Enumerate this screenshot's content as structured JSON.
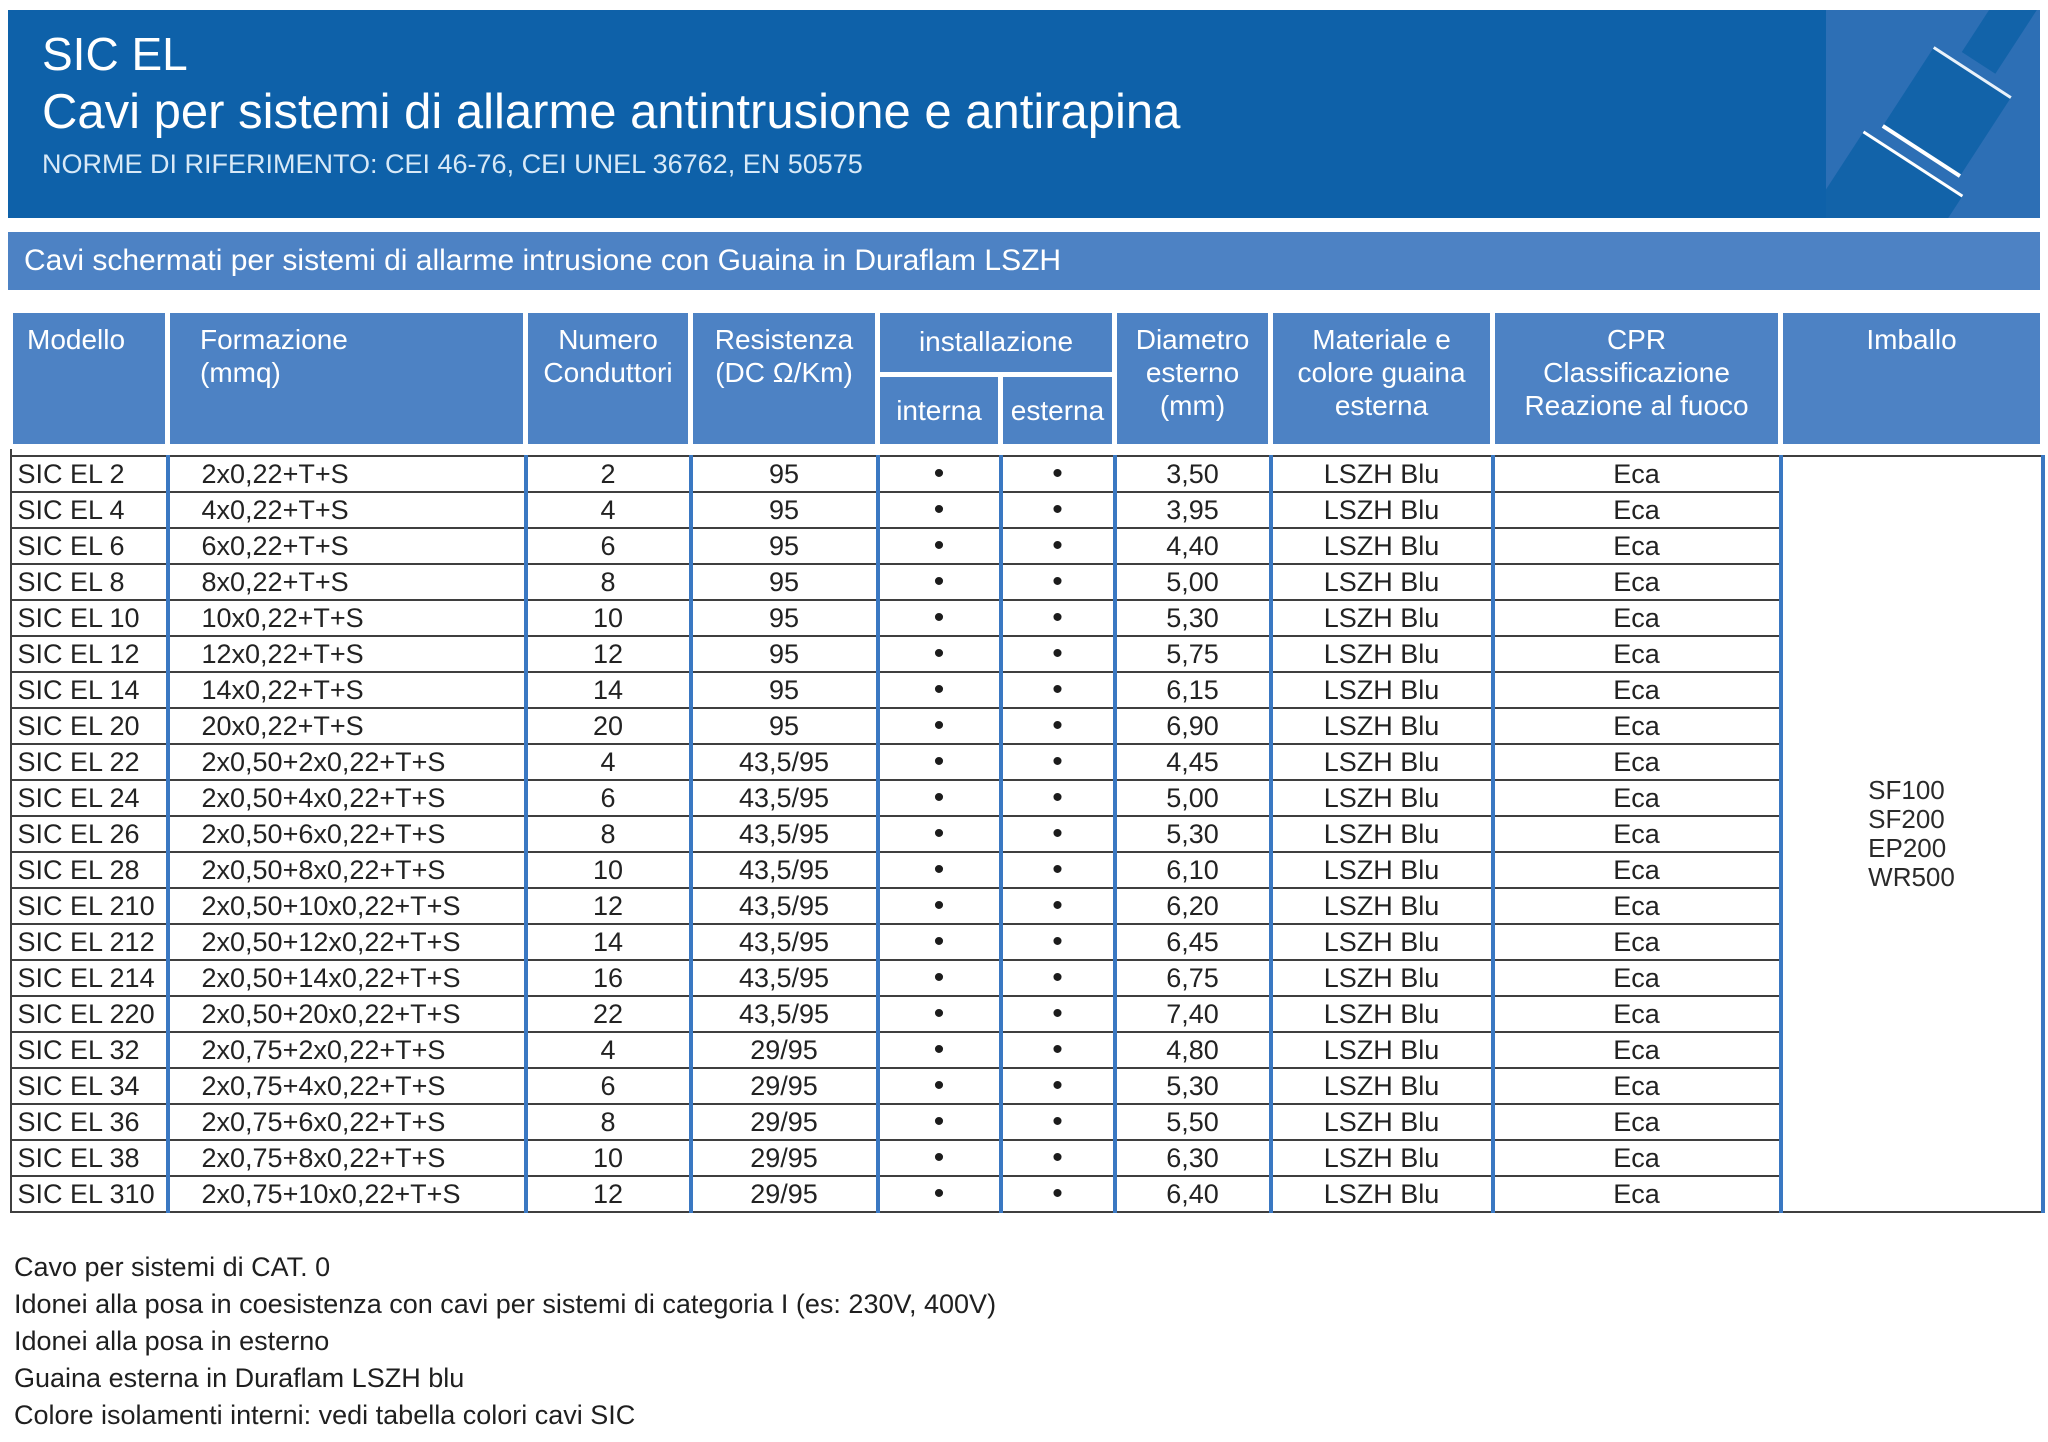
{
  "header": {
    "product": "SIC EL",
    "title": "Cavi per sistemi di allarme antintrusione e antirapina",
    "norms": "NORME DI RIFERIMENTO: CEI 46-76, CEI UNEL 36762, EN 50575"
  },
  "banner": {
    "label": "Cavi schermati per sistemi di allarme intrusione con Guaina in Duraflam LSZH"
  },
  "table": {
    "headers": {
      "modello": "Modello",
      "formazione": "Formazione\n(mmq)",
      "numero": "Numero\nConduttori",
      "resistenza": "Resistenza\n(DC Ω/Km)",
      "installazione": "installazione",
      "interna": "interna",
      "esterna": "esterna",
      "diametro": "Diametro\nesterno\n(mm)",
      "materiale": "Materiale e\ncolore guaina\nesterna",
      "cpr": "CPR\nClassificazione\nReazione al fuoco",
      "imballo": "Imballo"
    },
    "dot": "•",
    "imballo_options": [
      "SF100",
      "SF200",
      "EP200",
      "WR500"
    ],
    "rows": [
      {
        "model": "SIC EL 2",
        "formation": "2x0,22+T+S",
        "conductors": "2",
        "resistance": "95",
        "interna": true,
        "esterna": true,
        "diameter": "3,50",
        "sheath": "LSZH Blu",
        "cpr": "Eca"
      },
      {
        "model": "SIC EL 4",
        "formation": "4x0,22+T+S",
        "conductors": "4",
        "resistance": "95",
        "interna": true,
        "esterna": true,
        "diameter": "3,95",
        "sheath": "LSZH Blu",
        "cpr": "Eca"
      },
      {
        "model": "SIC EL 6",
        "formation": "6x0,22+T+S",
        "conductors": "6",
        "resistance": "95",
        "interna": true,
        "esterna": true,
        "diameter": "4,40",
        "sheath": "LSZH Blu",
        "cpr": "Eca"
      },
      {
        "model": "SIC EL 8",
        "formation": "8x0,22+T+S",
        "conductors": "8",
        "resistance": "95",
        "interna": true,
        "esterna": true,
        "diameter": "5,00",
        "sheath": "LSZH Blu",
        "cpr": "Eca"
      },
      {
        "model": "SIC EL 10",
        "formation": "10x0,22+T+S",
        "conductors": "10",
        "resistance": "95",
        "interna": true,
        "esterna": true,
        "diameter": "5,30",
        "sheath": "LSZH Blu",
        "cpr": "Eca"
      },
      {
        "model": "SIC EL 12",
        "formation": "12x0,22+T+S",
        "conductors": "12",
        "resistance": "95",
        "interna": true,
        "esterna": true,
        "diameter": "5,75",
        "sheath": "LSZH Blu",
        "cpr": "Eca"
      },
      {
        "model": "SIC EL 14",
        "formation": "14x0,22+T+S",
        "conductors": "14",
        "resistance": "95",
        "interna": true,
        "esterna": true,
        "diameter": "6,15",
        "sheath": "LSZH Blu",
        "cpr": "Eca"
      },
      {
        "model": "SIC EL 20",
        "formation": "20x0,22+T+S",
        "conductors": "20",
        "resistance": "95",
        "interna": true,
        "esterna": true,
        "diameter": "6,90",
        "sheath": "LSZH Blu",
        "cpr": "Eca"
      },
      {
        "model": "SIC EL 22",
        "formation": "2x0,50+2x0,22+T+S",
        "conductors": "4",
        "resistance": "43,5/95",
        "interna": true,
        "esterna": true,
        "diameter": "4,45",
        "sheath": "LSZH Blu",
        "cpr": "Eca"
      },
      {
        "model": "SIC EL 24",
        "formation": "2x0,50+4x0,22+T+S",
        "conductors": "6",
        "resistance": "43,5/95",
        "interna": true,
        "esterna": true,
        "diameter": "5,00",
        "sheath": "LSZH Blu",
        "cpr": "Eca"
      },
      {
        "model": "SIC EL 26",
        "formation": "2x0,50+6x0,22+T+S",
        "conductors": "8",
        "resistance": "43,5/95",
        "interna": true,
        "esterna": true,
        "diameter": "5,30",
        "sheath": "LSZH Blu",
        "cpr": "Eca"
      },
      {
        "model": "SIC EL 28",
        "formation": "2x0,50+8x0,22+T+S",
        "conductors": "10",
        "resistance": "43,5/95",
        "interna": true,
        "esterna": true,
        "diameter": "6,10",
        "sheath": "LSZH Blu",
        "cpr": "Eca"
      },
      {
        "model": "SIC EL 210",
        "formation": "2x0,50+10x0,22+T+S",
        "conductors": "12",
        "resistance": "43,5/95",
        "interna": true,
        "esterna": true,
        "diameter": "6,20",
        "sheath": "LSZH Blu",
        "cpr": "Eca"
      },
      {
        "model": "SIC EL 212",
        "formation": "2x0,50+12x0,22+T+S",
        "conductors": "14",
        "resistance": "43,5/95",
        "interna": true,
        "esterna": true,
        "diameter": "6,45",
        "sheath": "LSZH Blu",
        "cpr": "Eca"
      },
      {
        "model": "SIC EL 214",
        "formation": "2x0,50+14x0,22+T+S",
        "conductors": "16",
        "resistance": "43,5/95",
        "interna": true,
        "esterna": true,
        "diameter": "6,75",
        "sheath": "LSZH Blu",
        "cpr": "Eca"
      },
      {
        "model": "SIC EL 220",
        "formation": "2x0,50+20x0,22+T+S",
        "conductors": "22",
        "resistance": "43,5/95",
        "interna": true,
        "esterna": true,
        "diameter": "7,40",
        "sheath": "LSZH Blu",
        "cpr": "Eca"
      },
      {
        "model": "SIC EL 32",
        "formation": "2x0,75+2x0,22+T+S",
        "conductors": "4",
        "resistance": "29/95",
        "interna": true,
        "esterna": true,
        "diameter": "4,80",
        "sheath": "LSZH Blu",
        "cpr": "Eca"
      },
      {
        "model": "SIC EL 34",
        "formation": "2x0,75+4x0,22+T+S",
        "conductors": "6",
        "resistance": "29/95",
        "interna": true,
        "esterna": true,
        "diameter": "5,30",
        "sheath": "LSZH Blu",
        "cpr": "Eca"
      },
      {
        "model": "SIC EL 36",
        "formation": "2x0,75+6x0,22+T+S",
        "conductors": "8",
        "resistance": "29/95",
        "interna": true,
        "esterna": true,
        "diameter": "5,50",
        "sheath": "LSZH Blu",
        "cpr": "Eca"
      },
      {
        "model": "SIC EL 38",
        "formation": "2x0,75+8x0,22+T+S",
        "conductors": "10",
        "resistance": "29/95",
        "interna": true,
        "esterna": true,
        "diameter": "6,30",
        "sheath": "LSZH Blu",
        "cpr": "Eca"
      },
      {
        "model": "SIC EL 310",
        "formation": "2x0,75+10x0,22+T+S",
        "conductors": "12",
        "resistance": "29/95",
        "interna": true,
        "esterna": true,
        "diameter": "6,40",
        "sheath": "LSZH Blu",
        "cpr": "Eca"
      }
    ]
  },
  "footer": {
    "lines": [
      "Cavo per sistemi di CAT. 0",
      "Idonei alla posa in coesistenza con cavi per sistemi di categoria I (es: 230V, 400V)",
      "Idonei alla posa in esterno",
      "Guaina esterna in Duraflam LSZH blu",
      "Colore isolamenti interni: vedi tabella colori cavi SIC"
    ]
  },
  "colors": {
    "header_blue": "#0e61a9",
    "band_blue": "#4d82c4",
    "cell_border_blue": "#3a78c2",
    "graphic_background_blue": "#2d6fb5",
    "graphic_cable_blue": "#1263a9",
    "row_line_dark": "#3f3f3f"
  }
}
